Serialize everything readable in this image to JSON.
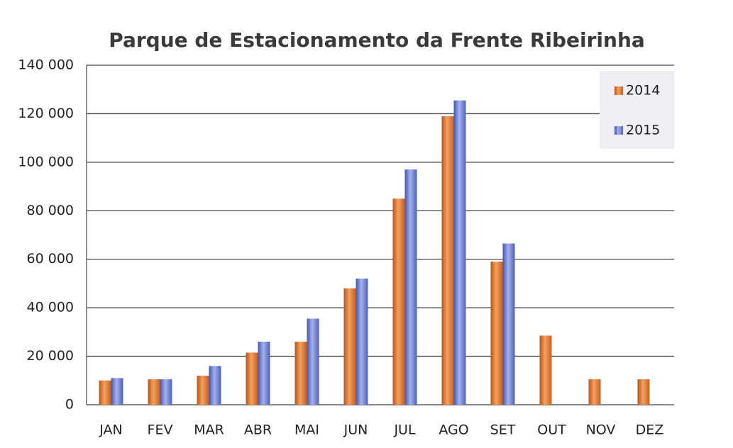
{
  "chart_data": {
    "type": "bar",
    "title": "Parque de Estacionamento da Frente Ribeirinha",
    "categories": [
      "JAN",
      "FEV",
      "MAR",
      "ABR",
      "MAI",
      "JUN",
      "JUL",
      "AGO",
      "SET",
      "OUT",
      "NOV",
      "DEZ"
    ],
    "series": [
      {
        "name": "2014",
        "color": "#e8762b",
        "values": [
          10000,
          10500,
          12000,
          21500,
          26000,
          48000,
          85000,
          119000,
          59000,
          28500,
          10500,
          10500
        ]
      },
      {
        "name": "2015",
        "color": "#6c7fd6",
        "values": [
          11000,
          10500,
          16000,
          26000,
          35500,
          52000,
          97000,
          125500,
          66500,
          null,
          null,
          null
        ]
      }
    ],
    "ylim": [
      0,
      140000
    ],
    "yticks": [
      0,
      {
        "value": 20000,
        "label": "20 000"
      },
      {
        "value": 40000,
        "label": "40 000"
      },
      {
        "value": 60000,
        "label": "60 000"
      },
      {
        "value": 80000,
        "label": "80 000"
      },
      {
        "value": 100000,
        "label": "100 000"
      },
      {
        "value": 120000,
        "label": "120 000"
      },
      {
        "value": 140000,
        "label": "140 000"
      }
    ],
    "grid": true,
    "legend": "top-right"
  }
}
